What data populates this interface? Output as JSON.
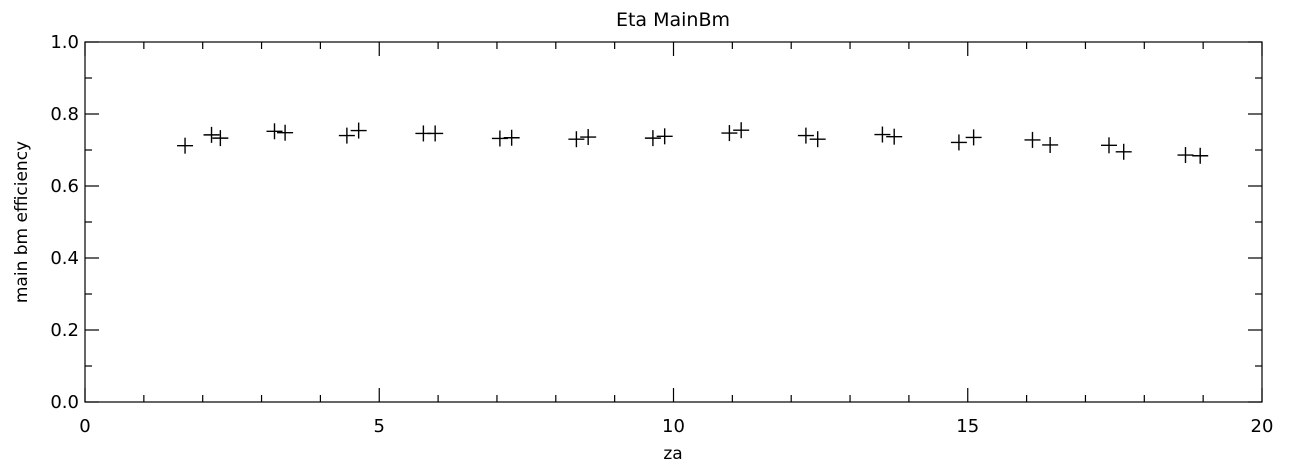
{
  "chart_data": {
    "type": "scatter",
    "title": "Eta MainBm",
    "xlabel": "za",
    "ylabel": "main bm efficiency",
    "xlim": [
      0,
      20
    ],
    "ylim": [
      0,
      1
    ],
    "xticks": [
      0,
      5,
      10,
      15,
      20
    ],
    "xtick_labels": [
      "0",
      "5",
      "10",
      "15",
      "20"
    ],
    "yticks": [
      0,
      0.2,
      0.4,
      0.6,
      0.8,
      1.0
    ],
    "ytick_labels": [
      "0.0",
      "0.2",
      "0.4",
      "0.6",
      "0.8",
      "1.0"
    ],
    "grid": false,
    "marker": "plus",
    "points": [
      {
        "x": 1.7,
        "y": 0.712
      },
      {
        "x": 2.15,
        "y": 0.742
      },
      {
        "x": 2.3,
        "y": 0.733
      },
      {
        "x": 3.22,
        "y": 0.752
      },
      {
        "x": 3.4,
        "y": 0.748
      },
      {
        "x": 4.45,
        "y": 0.74
      },
      {
        "x": 4.65,
        "y": 0.754
      },
      {
        "x": 5.75,
        "y": 0.746
      },
      {
        "x": 5.95,
        "y": 0.746
      },
      {
        "x": 7.05,
        "y": 0.732
      },
      {
        "x": 7.25,
        "y": 0.734
      },
      {
        "x": 8.35,
        "y": 0.73
      },
      {
        "x": 8.55,
        "y": 0.736
      },
      {
        "x": 9.65,
        "y": 0.733
      },
      {
        "x": 9.85,
        "y": 0.738
      },
      {
        "x": 10.95,
        "y": 0.747
      },
      {
        "x": 11.15,
        "y": 0.755
      },
      {
        "x": 12.25,
        "y": 0.74
      },
      {
        "x": 12.45,
        "y": 0.73
      },
      {
        "x": 13.55,
        "y": 0.743
      },
      {
        "x": 13.75,
        "y": 0.737
      },
      {
        "x": 14.85,
        "y": 0.721
      },
      {
        "x": 15.1,
        "y": 0.735
      },
      {
        "x": 16.1,
        "y": 0.728
      },
      {
        "x": 16.4,
        "y": 0.714
      },
      {
        "x": 17.4,
        "y": 0.713
      },
      {
        "x": 17.65,
        "y": 0.695
      },
      {
        "x": 18.7,
        "y": 0.686
      },
      {
        "x": 18.95,
        "y": 0.684
      }
    ]
  }
}
